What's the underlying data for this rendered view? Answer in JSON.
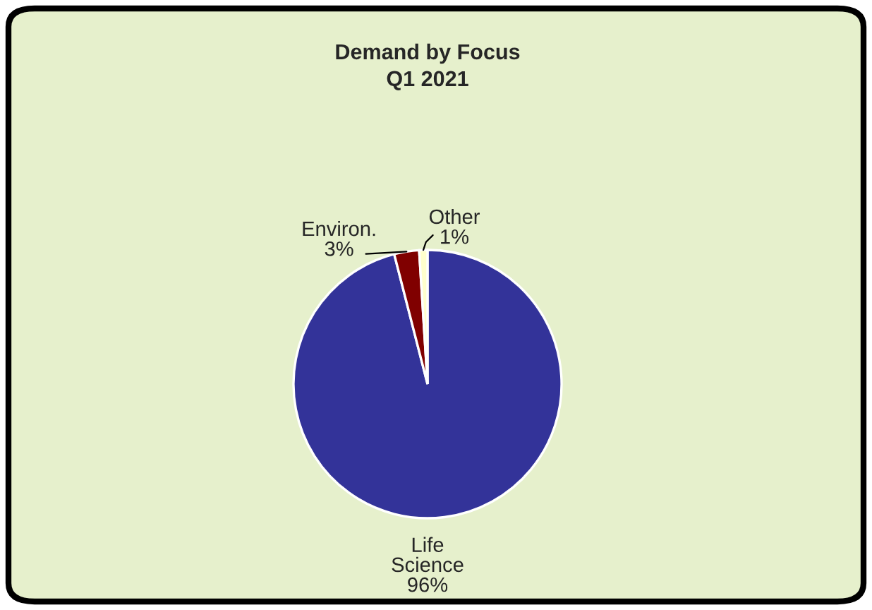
{
  "chart_data": {
    "type": "pie",
    "title": "Demand by Focus",
    "subtitle": "Q1 2021",
    "categories": [
      "Life Science",
      "Environ.",
      "Other"
    ],
    "values": [
      96,
      3,
      1
    ],
    "value_labels": [
      "96%",
      "3%",
      "1%"
    ],
    "colors": [
      "#333399",
      "#800000",
      "#ffffcc"
    ]
  }
}
